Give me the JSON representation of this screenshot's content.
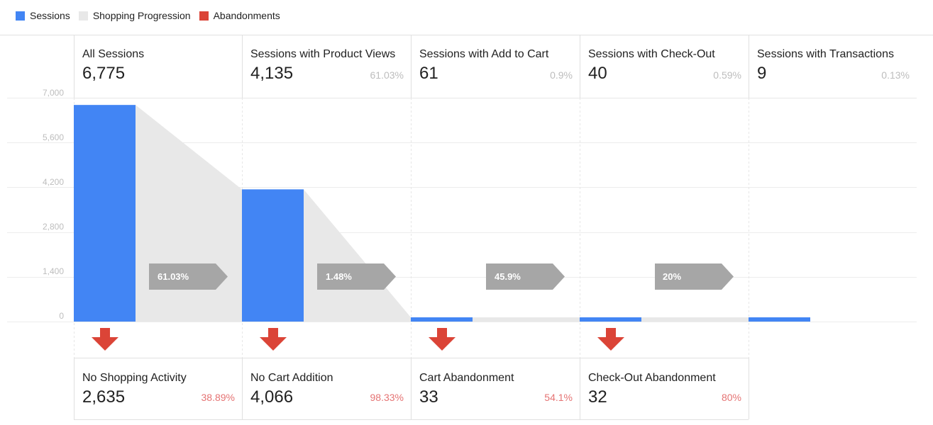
{
  "legend": [
    {
      "label": "Sessions",
      "color": "#4285f4"
    },
    {
      "label": "Shopping Progression",
      "color": "#e8e8e8"
    },
    {
      "label": "Abandonments",
      "color": "#db4437"
    }
  ],
  "stages": [
    {
      "label": "All Sessions",
      "value": "6,775",
      "pct": ""
    },
    {
      "label": "Sessions with Product Views",
      "value": "4,135",
      "pct": "61.03%"
    },
    {
      "label": "Sessions with Add to Cart",
      "value": "61",
      "pct": "0.9%"
    },
    {
      "label": "Sessions with Check-Out",
      "value": "40",
      "pct": "0.59%"
    },
    {
      "label": "Sessions with Transactions",
      "value": "9",
      "pct": "0.13%"
    }
  ],
  "progression": [
    "61.03%",
    "1.48%",
    "45.9%",
    "20%"
  ],
  "abandonments": [
    {
      "label": "No Shopping Activity",
      "value": "2,635",
      "pct": "38.89%"
    },
    {
      "label": "No Cart Addition",
      "value": "4,066",
      "pct": "98.33%"
    },
    {
      "label": "Cart Abandonment",
      "value": "33",
      "pct": "54.1%"
    },
    {
      "label": "Check-Out Abandonment",
      "value": "32",
      "pct": "80%"
    }
  ],
  "chart_data": {
    "type": "bar",
    "categories": [
      "All Sessions",
      "Sessions with Product Views",
      "Sessions with Add to Cart",
      "Sessions with Check-Out",
      "Sessions with Transactions"
    ],
    "values": [
      6775,
      4135,
      61,
      40,
      9
    ],
    "ylim": [
      0,
      7000
    ],
    "yticks": [
      "7,000",
      "5,600",
      "4,200",
      "2,800",
      "1,400",
      "0"
    ],
    "grid": true
  }
}
